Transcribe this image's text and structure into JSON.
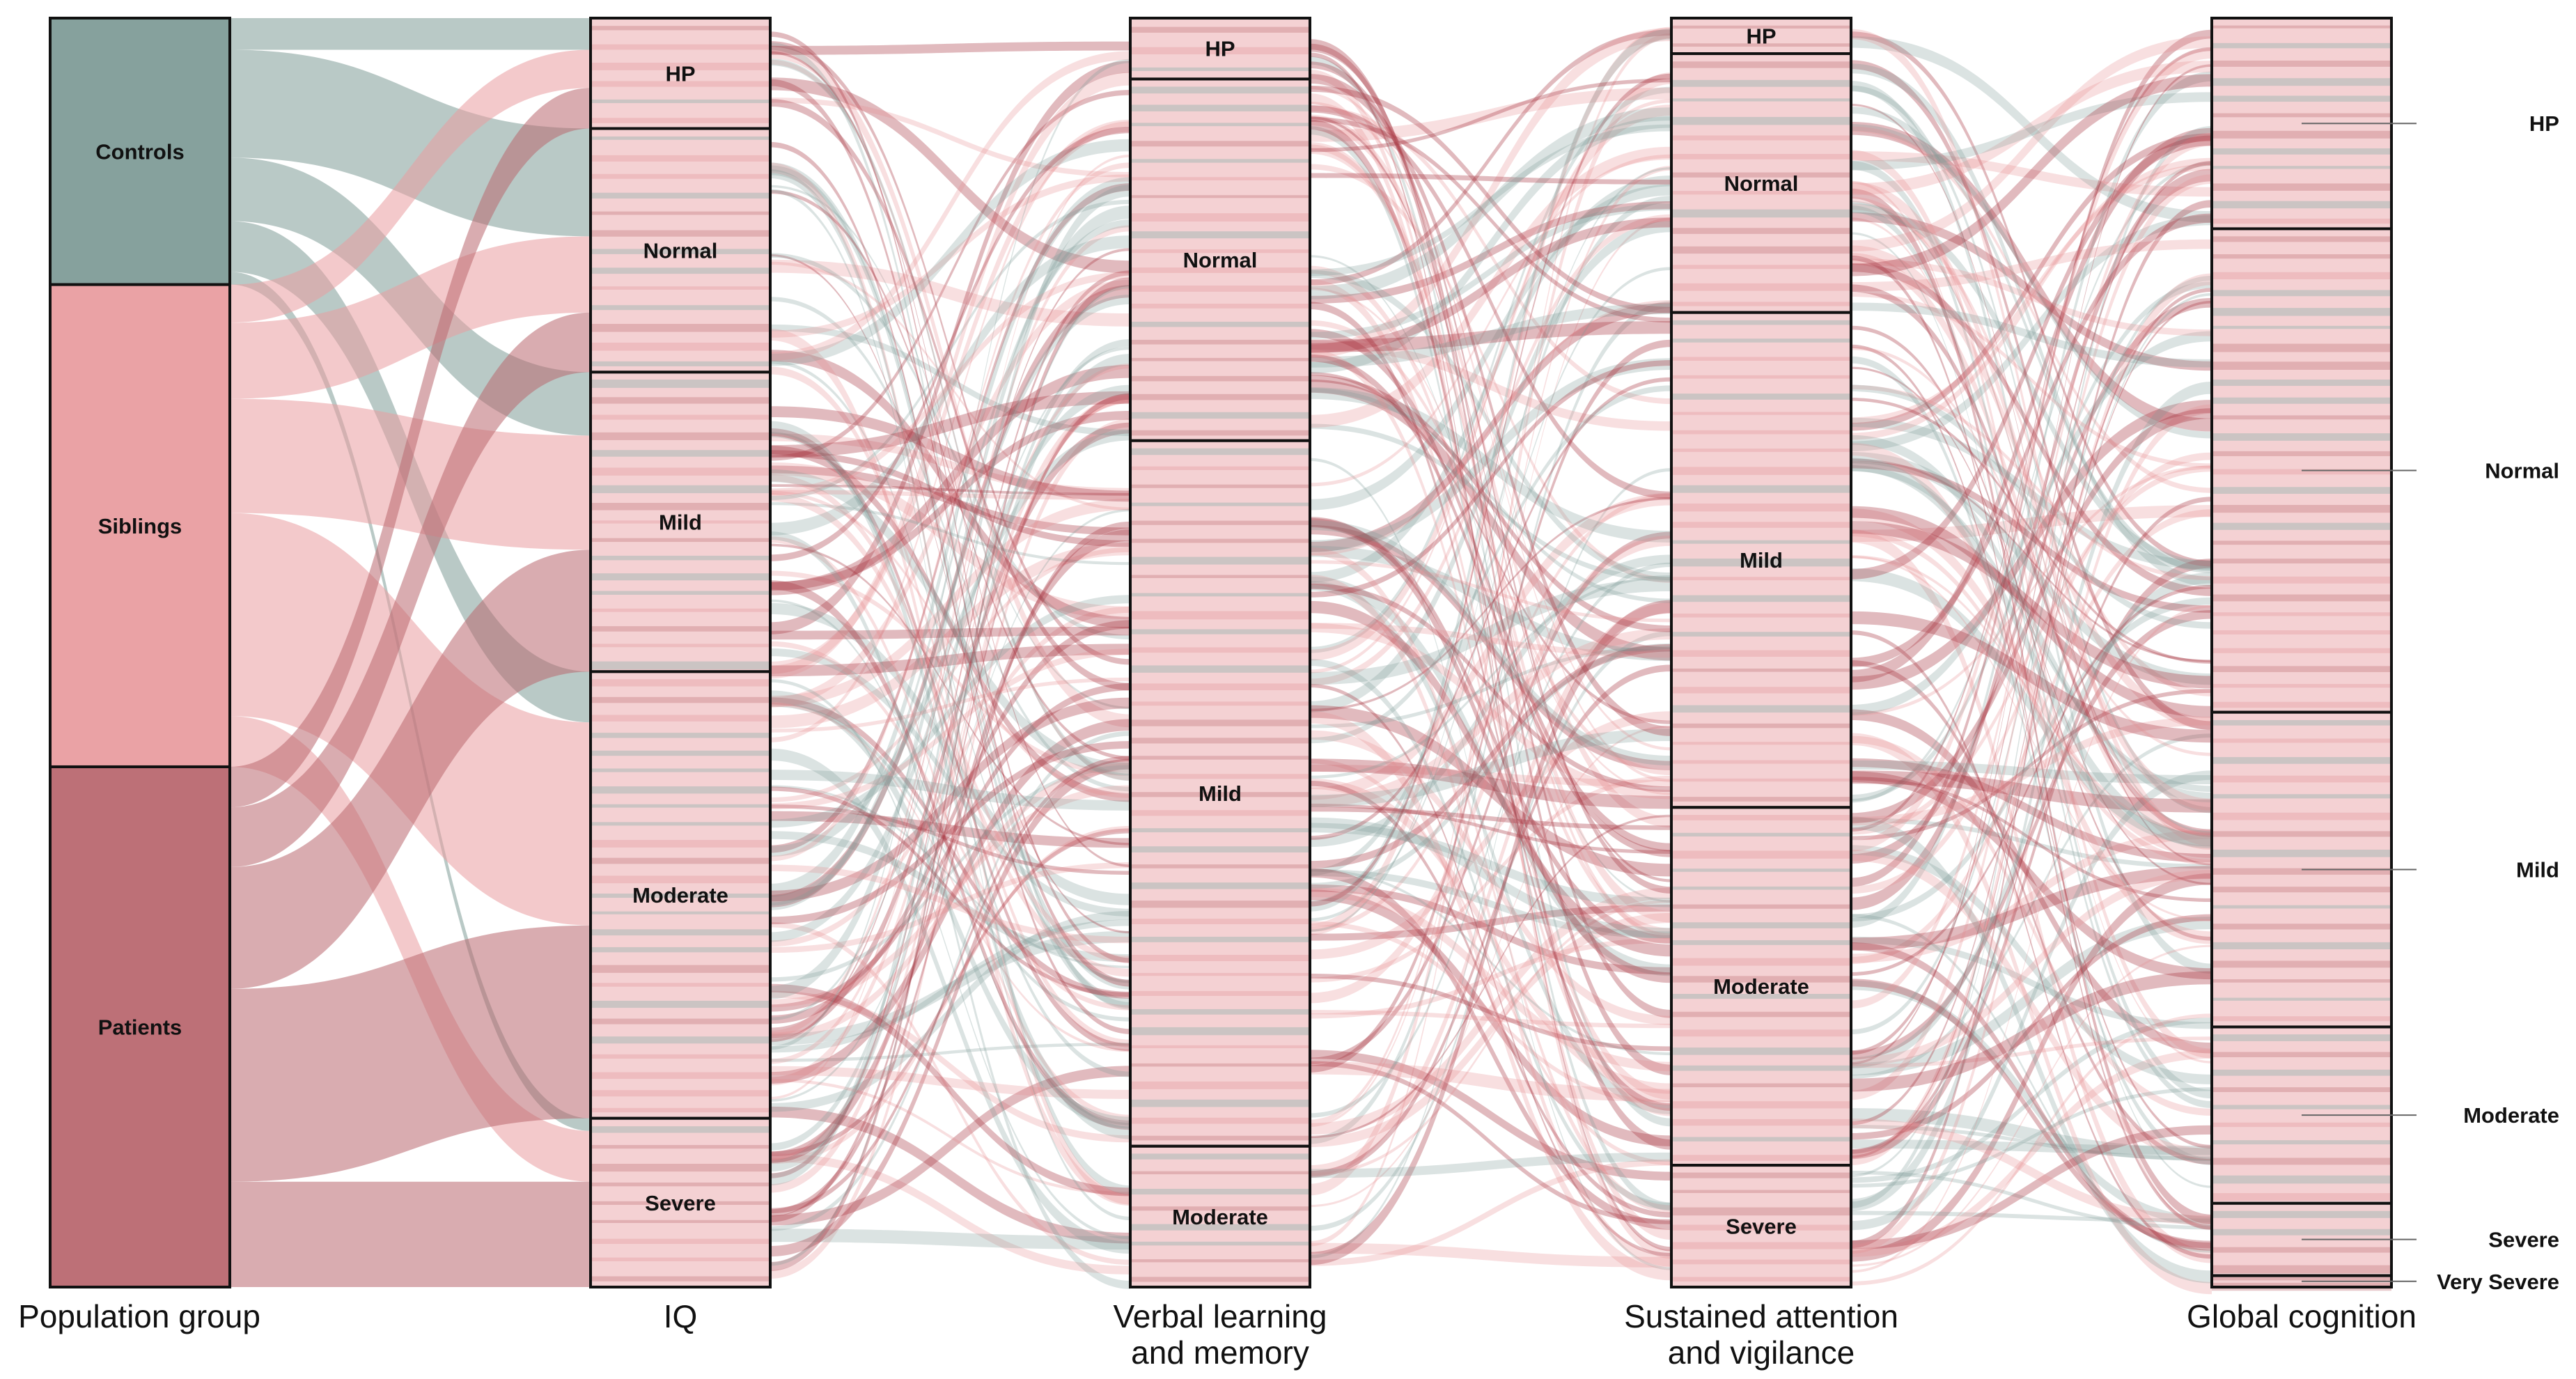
{
  "chart_data": {
    "type": "alluvial",
    "title": "",
    "colors": {
      "Controls": "#7f9c98",
      "Siblings": "#e99da0",
      "Patients": "#b96870"
    },
    "axes": [
      {
        "id": "pop",
        "label": "Population group",
        "strata": [
          {
            "name": "Controls",
            "count": 21
          },
          {
            "name": "Siblings",
            "count": 38
          },
          {
            "name": "Patients",
            "count": 41
          }
        ]
      },
      {
        "id": "iq",
        "label": "IQ",
        "strata": [
          {
            "name": "HP",
            "count": 8.7
          },
          {
            "name": "Normal",
            "count": 19.2
          },
          {
            "name": "Mild",
            "count": 23.6
          },
          {
            "name": "Moderate",
            "count": 35.2
          },
          {
            "name": "Severe",
            "count": 13.3
          }
        ]
      },
      {
        "id": "vlm",
        "label": "Verbal learning and memory",
        "strata": [
          {
            "name": "HP",
            "count": 4.8
          },
          {
            "name": "Normal",
            "count": 28.5
          },
          {
            "name": "Mild",
            "count": 55.6
          },
          {
            "name": "Moderate",
            "count": 11.1
          }
        ]
      },
      {
        "id": "sav",
        "label": "Sustained attention and vigilance",
        "strata": [
          {
            "name": "HP",
            "count": 2.8
          },
          {
            "name": "Normal",
            "count": 20.4
          },
          {
            "name": "Mild",
            "count": 39.0
          },
          {
            "name": "Moderate",
            "count": 28.2
          },
          {
            "name": "Severe",
            "count": 9.6
          }
        ]
      },
      {
        "id": "gc",
        "label": "Global cognition",
        "strata": [
          {
            "name": "HP",
            "count": 16.6
          },
          {
            "name": "Normal",
            "count": 38.1
          },
          {
            "name": "Mild",
            "count": 24.8
          },
          {
            "name": "Moderate",
            "count": 13.9
          },
          {
            "name": "Severe",
            "count": 5.7
          },
          {
            "name": "Very Severe",
            "count": 0.9
          }
        ]
      }
    ],
    "axis_labels": {
      "pop": [
        "Population group"
      ],
      "iq": [
        "IQ"
      ],
      "vlm": [
        "Verbal learning",
        "and memory"
      ],
      "sav": [
        "Sustained attention",
        "and vigilance"
      ],
      "gc": [
        "Global cognition"
      ]
    },
    "flows": {
      "pop_iq": [
        [
          "Controls",
          "HP",
          2.5
        ],
        [
          "Controls",
          "Normal",
          8.5
        ],
        [
          "Controls",
          "Mild",
          5
        ],
        [
          "Controls",
          "Moderate",
          4
        ],
        [
          "Controls",
          "Severe",
          1
        ],
        [
          "Siblings",
          "HP",
          3
        ],
        [
          "Siblings",
          "Normal",
          6
        ],
        [
          "Siblings",
          "Mild",
          9
        ],
        [
          "Siblings",
          "Moderate",
          16
        ],
        [
          "Siblings",
          "Severe",
          4
        ],
        [
          "Patients",
          "HP",
          3.2
        ],
        [
          "Patients",
          "Normal",
          4.7
        ],
        [
          "Patients",
          "Mild",
          9.6
        ],
        [
          "Patients",
          "Moderate",
          15.2
        ],
        [
          "Patients",
          "Severe",
          8.3
        ]
      ]
    },
    "legend": "none",
    "grid": false
  }
}
